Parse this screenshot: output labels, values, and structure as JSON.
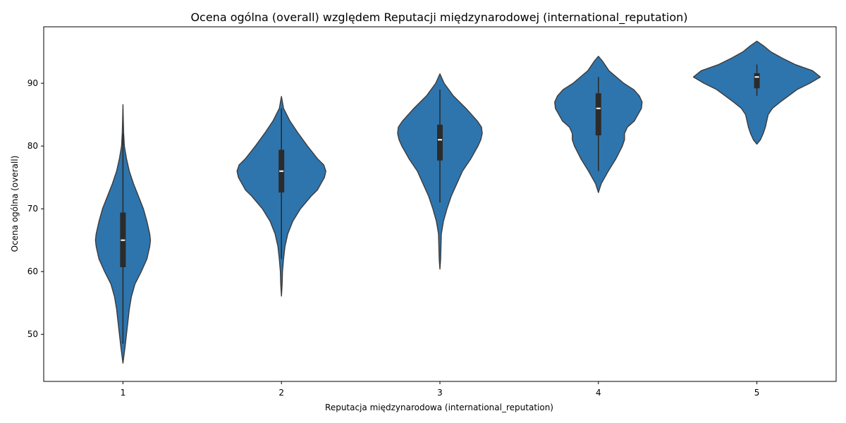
{
  "chart_data": {
    "type": "violin",
    "title": "Ocena ogólna (overall) względem Reputacji międzynarodowej (international_reputation)",
    "xlabel": "Reputacja międzynarodowa (international_reputation)",
    "ylabel": "Ocena ogólna (overall)",
    "categories": [
      "1",
      "2",
      "3",
      "4",
      "5"
    ],
    "ylim": [
      42.5,
      99
    ],
    "yticks": [
      50,
      60,
      70,
      80,
      90
    ],
    "grid": false,
    "color": "#2e75ae",
    "edge_color": "#3b3b3b",
    "box_color": "#2b2b2b",
    "violins": [
      {
        "category": "1",
        "min": 45.4,
        "max": 86.6,
        "q1": 60.7,
        "median": 65.0,
        "q3": 69.4,
        "whisker_low": 48.5,
        "whisker_high": 82.0,
        "profile": [
          [
            45.4,
            0.0
          ],
          [
            48,
            3
          ],
          [
            50,
            5
          ],
          [
            52,
            7
          ],
          [
            54,
            9
          ],
          [
            56,
            12
          ],
          [
            58,
            17
          ],
          [
            60,
            26
          ],
          [
            62,
            34
          ],
          [
            64,
            38
          ],
          [
            65,
            39
          ],
          [
            66,
            38
          ],
          [
            68,
            34
          ],
          [
            70,
            29
          ],
          [
            72,
            22
          ],
          [
            74,
            15
          ],
          [
            76,
            9
          ],
          [
            78,
            5
          ],
          [
            80,
            2
          ],
          [
            82,
            1
          ],
          [
            84,
            0.5
          ],
          [
            86.6,
            0.0
          ]
        ]
      },
      {
        "category": "2",
        "min": 56.1,
        "max": 87.9,
        "q1": 72.6,
        "median": 76.0,
        "q3": 79.4,
        "whisker_low": 62.0,
        "whisker_high": 86.0,
        "profile": [
          [
            56.1,
            0.0
          ],
          [
            58,
            1
          ],
          [
            60,
            1.5
          ],
          [
            62,
            3
          ],
          [
            64,
            5
          ],
          [
            66,
            9
          ],
          [
            68,
            16
          ],
          [
            70,
            27
          ],
          [
            72,
            42
          ],
          [
            73,
            51
          ],
          [
            74,
            56
          ],
          [
            75,
            61
          ],
          [
            76,
            63
          ],
          [
            77,
            60
          ],
          [
            78,
            51
          ],
          [
            80,
            37
          ],
          [
            82,
            24
          ],
          [
            84,
            12
          ],
          [
            86,
            3
          ],
          [
            87.9,
            0.0
          ]
        ]
      },
      {
        "category": "3",
        "min": 60.4,
        "max": 91.5,
        "q1": 77.7,
        "median": 81.0,
        "q3": 83.4,
        "whisker_low": 71.0,
        "whisker_high": 89.0,
        "profile": [
          [
            60.4,
            0.0
          ],
          [
            62,
            1
          ],
          [
            64,
            1.5
          ],
          [
            66,
            2
          ],
          [
            68,
            5
          ],
          [
            70,
            10
          ],
          [
            72,
            16
          ],
          [
            74,
            24
          ],
          [
            76,
            32
          ],
          [
            78,
            44
          ],
          [
            80,
            54
          ],
          [
            81,
            58
          ],
          [
            82,
            60
          ],
          [
            83,
            59
          ],
          [
            84,
            53
          ],
          [
            86,
            37
          ],
          [
            88,
            19
          ],
          [
            90,
            6
          ],
          [
            91.5,
            0.0
          ]
        ]
      },
      {
        "category": "4",
        "min": 72.6,
        "max": 94.3,
        "q1": 81.7,
        "median": 86.0,
        "q3": 88.4,
        "whisker_low": 76.0,
        "whisker_high": 91.0,
        "profile": [
          [
            72.6,
            0.0
          ],
          [
            74,
            4
          ],
          [
            76,
            14
          ],
          [
            78,
            25
          ],
          [
            80,
            34
          ],
          [
            81,
            37
          ],
          [
            82,
            37
          ],
          [
            83,
            41
          ],
          [
            84,
            51
          ],
          [
            86,
            61
          ],
          [
            87,
            62
          ],
          [
            88,
            58
          ],
          [
            89,
            50
          ],
          [
            90,
            36
          ],
          [
            92,
            15
          ],
          [
            93.5,
            6
          ],
          [
            94.3,
            0.0
          ]
        ]
      },
      {
        "category": "5",
        "min": 80.3,
        "max": 96.7,
        "q1": 89.2,
        "median": 91.0,
        "q3": 91.6,
        "whisker_low": 88.0,
        "whisker_high": 93.0,
        "profile": [
          [
            80.3,
            0.0
          ],
          [
            81,
            5
          ],
          [
            82,
            9
          ],
          [
            83,
            12
          ],
          [
            84,
            14
          ],
          [
            85,
            16
          ],
          [
            86,
            22
          ],
          [
            87,
            33
          ],
          [
            88,
            45
          ],
          [
            89,
            57
          ],
          [
            90,
            75
          ],
          [
            91,
            90
          ],
          [
            92,
            79
          ],
          [
            93,
            54
          ],
          [
            94,
            36
          ],
          [
            95,
            20
          ],
          [
            96,
            9
          ],
          [
            96.7,
            0.0
          ]
        ]
      }
    ]
  }
}
